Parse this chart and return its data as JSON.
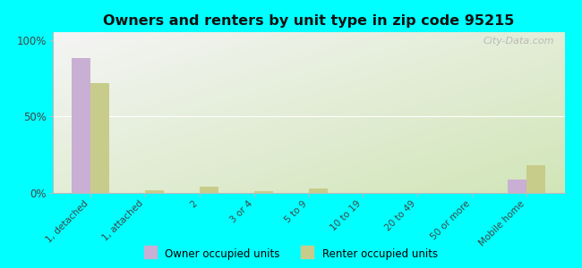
{
  "title": "Owners and renters by unit type in zip code 95215",
  "categories": [
    "1, detached",
    "1, attached",
    "2",
    "3 or 4",
    "5 to 9",
    "10 to 19",
    "20 to 49",
    "50 or more",
    "Mobile home"
  ],
  "owner_values": [
    88,
    0,
    0,
    0,
    0,
    0,
    0,
    0,
    9
  ],
  "renter_values": [
    72,
    2,
    4,
    1,
    3,
    0,
    0,
    0,
    18
  ],
  "owner_color": "#c9afd4",
  "renter_color": "#c8cc8a",
  "background_color": "#00ffff",
  "plot_bg_top_left": "#f5f5f5",
  "plot_bg_bottom_right": "#d8eab8",
  "yticks": [
    0,
    50,
    100
  ],
  "ylim": [
    0,
    105
  ],
  "bar_width": 0.35,
  "legend_owner": "Owner occupied units",
  "legend_renter": "Renter occupied units",
  "watermark": "City-Data.com"
}
